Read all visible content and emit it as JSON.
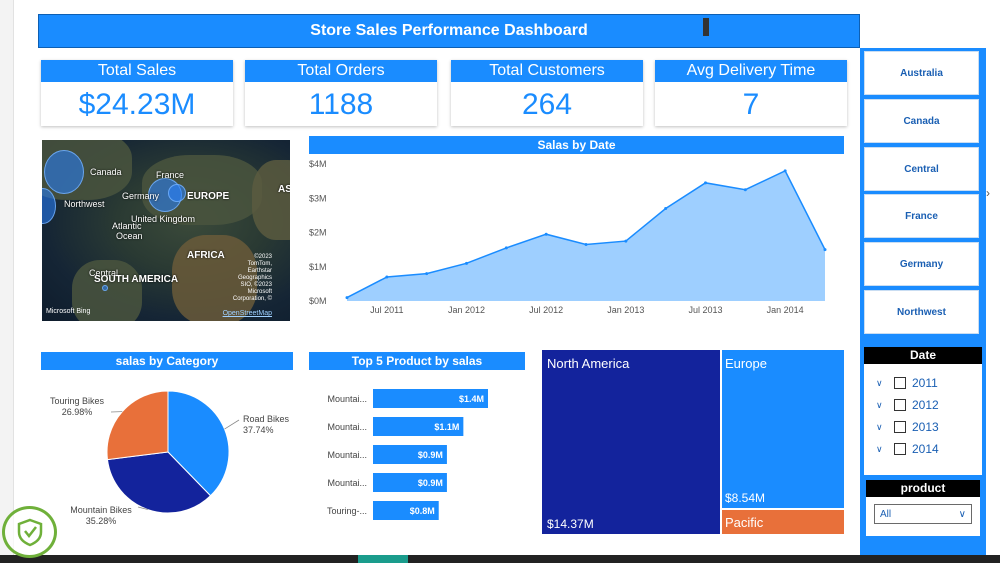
{
  "title": "Store Sales Performance Dashboard",
  "kpis": [
    {
      "label": "Total Sales",
      "value": "$24.23M"
    },
    {
      "label": "Total Orders",
      "value": "1188"
    },
    {
      "label": "Total Customers",
      "value": "264"
    },
    {
      "label": "Avg Delivery Time",
      "value": "7"
    }
  ],
  "map": {
    "labels": [
      "Canada",
      "France",
      "Germany",
      "EUROPE",
      "Northwest",
      "United Kingdom",
      "Atlantic",
      "Ocean",
      "AFRICA",
      "Central",
      "SOUTH AMERICA",
      "ASI"
    ],
    "bing": "Microsoft Bing",
    "osm": "OpenStreetMap",
    "credits": "©2023 TomTom, Earthstar Geographics SIO, ©2023 Microsoft Corporation, ©"
  },
  "line_chart": {
    "title": "Salas by Date"
  },
  "pie_chart": {
    "title": "salas by Category"
  },
  "bar_chart": {
    "title": "Top 5 Product by salas"
  },
  "treemap": {
    "cells": [
      {
        "name": "North America",
        "value": "$14.37M",
        "color": "#13239c"
      },
      {
        "name": "Europe",
        "value": "$8.54M",
        "color": "#1a8cff"
      },
      {
        "name": "Pacific",
        "value": "",
        "color": "#e8703a"
      }
    ]
  },
  "slicer_regions": [
    "Australia",
    "Canada",
    "Central",
    "France",
    "Germany",
    "Northwest"
  ],
  "date_slicer": {
    "title": "Date",
    "years": [
      "2011",
      "2012",
      "2013",
      "2014"
    ]
  },
  "product_slicer": {
    "title": "product",
    "selected": "All"
  },
  "chart_data": [
    {
      "type": "area",
      "title": "Salas by Date",
      "x": [
        "Apr 2011",
        "Jul 2011",
        "Oct 2011",
        "Jan 2012",
        "Apr 2012",
        "Jul 2012",
        "Oct 2012",
        "Jan 2013",
        "Apr 2013",
        "Jul 2013",
        "Oct 2013",
        "Jan 2014",
        "Apr 2014"
      ],
      "values": [
        0.1,
        0.7,
        0.8,
        1.1,
        1.55,
        1.95,
        1.65,
        1.75,
        2.7,
        3.45,
        3.25,
        3.8,
        1.5
      ],
      "x_ticks": [
        "Jul 2011",
        "Jan 2012",
        "Jul 2012",
        "Jan 2013",
        "Jul 2013",
        "Jan 2014"
      ],
      "y_ticks": [
        "$0M",
        "$1M",
        "$2M",
        "$3M",
        "$4M"
      ],
      "ylim": [
        0,
        4
      ],
      "color": "#9ecfff",
      "line_color": "#1a8cff"
    },
    {
      "type": "pie",
      "title": "salas by Category",
      "slices": [
        {
          "label": "Road Bikes",
          "pct_label": "37.74%",
          "value": 37.74,
          "color": "#1a8cff"
        },
        {
          "label": "Mountain Bikes",
          "pct_label": "35.28%",
          "value": 35.28,
          "color": "#13239c"
        },
        {
          "label": "Touring Bikes",
          "pct_label": "26.98%",
          "value": 26.98,
          "color": "#e8703a"
        }
      ]
    },
    {
      "type": "bar",
      "title": "Top 5 Product by salas",
      "categories": [
        "Mountai...",
        "Mountai...",
        "Mountai...",
        "Mountai...",
        "Touring-..."
      ],
      "values": [
        1.4,
        1.1,
        0.9,
        0.9,
        0.8
      ],
      "value_labels": [
        "$1.4M",
        "$1.1M",
        "$0.9M",
        "$0.9M",
        "$0.8M"
      ],
      "color": "#1a8cff"
    },
    {
      "type": "treemap",
      "items": [
        {
          "name": "North America",
          "value": 14.37
        },
        {
          "name": "Europe",
          "value": 8.54
        },
        {
          "name": "Pacific",
          "value": 1.32
        }
      ]
    }
  ]
}
